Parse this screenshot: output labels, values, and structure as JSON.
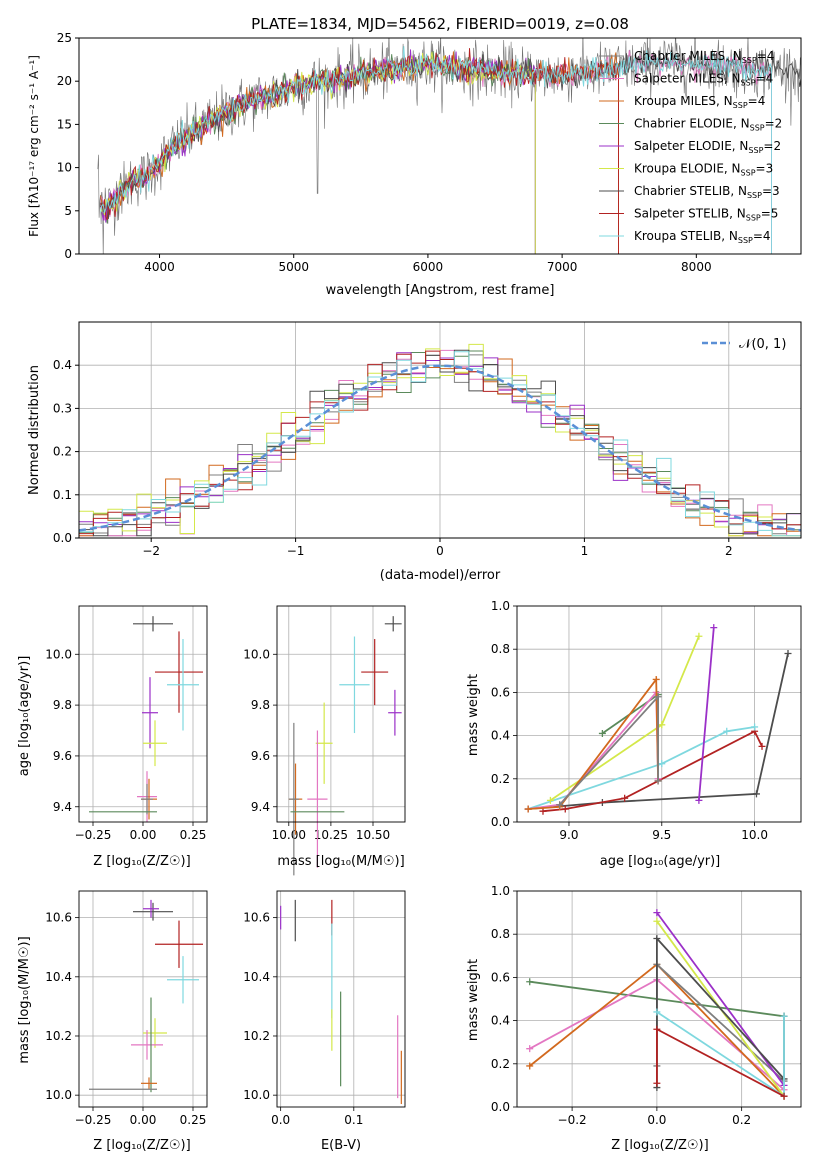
{
  "colors": {
    "Chabrier MILES": "#7f7f7f",
    "Salpeter MILES": "#e377c2",
    "Kroupa MILES": "#d2691e",
    "Chabrier ELODIE": "#5b8a5b",
    "Salpeter ELODIE": "#9b30c8",
    "Kroupa ELODIE": "#d4e84a",
    "Chabrier STELIB": "#4d4d4d",
    "Salpeter STELIB": "#b22222",
    "Kroupa STELIB": "#7fd8df",
    "normal": "#5a8fd6",
    "grid": "#b0b0b0"
  },
  "labels": {
    "title": "PLATE=1834, MJD=54562, FIBERID=0019, z=0.08",
    "spec_xlabel": "wavelength [Angstrom, rest frame]",
    "spec_ylabel": "Flux [fλ10⁻¹⁷ erg cm⁻² s⁻¹ A⁻¹]",
    "hist_xlabel": "(data-model)/error",
    "hist_ylabel": "Normed distribution",
    "hist_legend": "𝒩(0, 1)",
    "age_ylabel": "age  [log₁₀(age/yr)]",
    "z_xlabel": "Z [log₁₀(Z/Z☉)]",
    "mass_xlabel": "mass [log₁₀(M/M☉)]",
    "age_xlabel": "age  [log₁₀(age/yr)]",
    "mw_ylabel": "mass weight",
    "mass_ylabel": "mass [log₁₀(M/M☉)]",
    "ebv_xlabel": "E(B-V)"
  },
  "legend": [
    {
      "text": "Chabrier MILES, N",
      "sub": "SSP",
      "post": "=4",
      "series": "Chabrier MILES"
    },
    {
      "text": "Salpeter MILES, N",
      "sub": "SSP",
      "post": "=4",
      "series": "Salpeter MILES"
    },
    {
      "text": "Kroupa MILES, N",
      "sub": "SSP",
      "post": "=4",
      "series": "Kroupa MILES"
    },
    {
      "text": "Chabrier ELODIE, N",
      "sub": "SSP",
      "post": "=2",
      "series": "Chabrier ELODIE"
    },
    {
      "text": "Salpeter ELODIE, N",
      "sub": "SSP",
      "post": "=2",
      "series": "Salpeter ELODIE"
    },
    {
      "text": "Kroupa ELODIE, N",
      "sub": "SSP",
      "post": "=3",
      "series": "Kroupa ELODIE"
    },
    {
      "text": "Chabrier STELIB, N",
      "sub": "SSP",
      "post": "=3",
      "series": "Chabrier STELIB"
    },
    {
      "text": "Salpeter STELIB, N",
      "sub": "SSP",
      "post": "=5",
      "series": "Salpeter STELIB"
    },
    {
      "text": "Kroupa STELIB, N",
      "sub": "SSP",
      "post": "=4",
      "series": "Kroupa STELIB"
    }
  ],
  "chart_data": [
    {
      "id": "spectrum",
      "type": "line",
      "title": "PLATE=1834, MJD=54562, FIBERID=0019, z=0.08",
      "xlabel": "wavelength [Angstrom, rest frame]",
      "ylabel": "Flux [fλ10⁻¹⁷ erg cm⁻² s⁻¹ A⁻¹]",
      "xlim": [
        3400,
        8780
      ],
      "ylim": [
        0,
        25
      ],
      "xticks": [
        4000,
        5000,
        6000,
        7000,
        8000
      ],
      "yticks": [
        0,
        5,
        10,
        15,
        20,
        25
      ],
      "grid": false,
      "legend_position": "right",
      "continuum": {
        "x": [
          3540,
          3600,
          3700,
          3800,
          3900,
          4000,
          4100,
          4200,
          4300,
          4400,
          4500,
          4600,
          4700,
          4800,
          4900,
          5000,
          5200,
          5400,
          5600,
          5800,
          6000,
          6200,
          6400,
          6600,
          6800,
          7000,
          7200,
          7400,
          7600,
          7800,
          8000,
          8200,
          8400,
          8600
        ],
        "y": [
          6.0,
          5.0,
          7.0,
          8.5,
          9.0,
          10.5,
          12.5,
          13.5,
          14.5,
          15.5,
          16.5,
          17.2,
          17.8,
          18.3,
          18.8,
          19.3,
          20.0,
          20.5,
          21.0,
          21.5,
          22.0,
          21.5,
          21.2,
          21.0,
          20.8,
          20.8,
          21.0,
          21.5,
          22.0,
          22.3,
          22.0,
          21.7,
          21.5,
          21.3
        ]
      },
      "series": [
        {
          "name": "Chabrier MILES",
          "end": 8560
        },
        {
          "name": "Salpeter MILES",
          "end": 8560
        },
        {
          "name": "Kroupa MILES",
          "end": 7420
        },
        {
          "name": "Chabrier ELODIE",
          "end": 6800
        },
        {
          "name": "Salpeter ELODIE",
          "end": 6800
        },
        {
          "name": "Kroupa ELODIE",
          "end": 6800
        },
        {
          "name": "Chabrier STELIB",
          "end": 8780
        },
        {
          "name": "Salpeter STELIB",
          "end": 7420
        },
        {
          "name": "Kroupa STELIB",
          "end": 8560
        }
      ]
    },
    {
      "id": "residuals",
      "type": "line",
      "xlabel": "(data-model)/error",
      "ylabel": "Normed distribution",
      "xlim": [
        -2.5,
        2.5
      ],
      "ylim": [
        0,
        0.5
      ],
      "xticks": [
        -2,
        -1,
        0,
        1,
        2
      ],
      "yticks": [
        0.0,
        0.1,
        0.2,
        0.3,
        0.4
      ],
      "grid": true,
      "legend_position": "top-right",
      "reference": {
        "name": "𝒩(0, 1)",
        "mean": 0,
        "sigma": 1
      },
      "bin_width": 0.1
    },
    {
      "id": "age_vs_Z",
      "type": "scatter",
      "xlabel": "Z [log₁₀(Z/Z☉)]",
      "ylabel": "age  [log₁₀(age/yr)]",
      "xlim": [
        -0.32,
        0.32
      ],
      "ylim": [
        9.34,
        10.19
      ],
      "xticks": [
        -0.25,
        0.0,
        0.25
      ],
      "yticks": [
        9.4,
        9.6,
        9.8,
        10.0
      ],
      "grid": true,
      "points": [
        {
          "series": "Chabrier STELIB",
          "x": 0.05,
          "y": 10.12,
          "xerr": 0.1,
          "yerr": 0.03
        },
        {
          "series": "Salpeter STELIB",
          "x": 0.18,
          "y": 9.93,
          "xerr": 0.12,
          "yerr": 0.16
        },
        {
          "series": "Kroupa STELIB",
          "x": 0.2,
          "y": 9.88,
          "xerr": 0.08,
          "yerr": 0.18
        },
        {
          "series": "Salpeter ELODIE",
          "x": 0.035,
          "y": 9.77,
          "xerr": 0.04,
          "yerr": 0.14
        },
        {
          "series": "Kroupa ELODIE",
          "x": 0.06,
          "y": 9.65,
          "xerr": 0.06,
          "yerr": 0.09
        },
        {
          "series": "Salpeter MILES",
          "x": 0.02,
          "y": 9.44,
          "xerr": 0.05,
          "yerr": 0.1
        },
        {
          "series": "Kroupa MILES",
          "x": 0.03,
          "y": 9.43,
          "xerr": 0.04,
          "yerr": 0.08
        },
        {
          "series": "Chabrier MILES",
          "x": 0.02,
          "y": 9.43,
          "xerr": 0.03,
          "yerr": 0.06
        },
        {
          "series": "Chabrier ELODIE",
          "x": -0.1,
          "y": 9.38,
          "xerr": 0.17,
          "yerr": 0.0
        }
      ]
    },
    {
      "id": "age_vs_mass",
      "type": "scatter",
      "xlabel": "mass [log₁₀(M/M☉)]",
      "xlim": [
        9.93,
        10.69
      ],
      "ylim": [
        9.34,
        10.19
      ],
      "xticks": [
        10.0,
        10.25,
        10.5
      ],
      "yticks": [
        9.4,
        9.6,
        9.8,
        10.0
      ],
      "grid": true,
      "points": [
        {
          "series": "Chabrier STELIB",
          "x": 10.62,
          "y": 10.12,
          "xerr": 0.05,
          "yerr": 0.03
        },
        {
          "series": "Salpeter STELIB",
          "x": 10.51,
          "y": 9.93,
          "xerr": 0.08,
          "yerr": 0.13
        },
        {
          "series": "Kroupa STELIB",
          "x": 10.39,
          "y": 9.88,
          "xerr": 0.09,
          "yerr": 0.19
        },
        {
          "series": "Salpeter ELODIE",
          "x": 10.63,
          "y": 9.77,
          "xerr": 0.04,
          "yerr": 0.09
        },
        {
          "series": "Kroupa ELODIE",
          "x": 10.21,
          "y": 9.65,
          "xerr": 0.05,
          "yerr": 0.16
        },
        {
          "series": "Salpeter MILES",
          "x": 10.17,
          "y": 9.43,
          "xerr": 0.06,
          "yerr": 0.27
        },
        {
          "series": "Kroupa MILES",
          "x": 10.04,
          "y": 9.43,
          "xerr": 0.04,
          "yerr": 0.14
        },
        {
          "series": "Chabrier MILES",
          "x": 10.03,
          "y": 9.43,
          "xerr": 0.03,
          "yerr": 0.3
        },
        {
          "series": "Chabrier ELODIE",
          "x": 10.17,
          "y": 9.38,
          "xerr": 0.16,
          "yerr": 0.0
        }
      ]
    },
    {
      "id": "massweight_vs_age",
      "type": "line",
      "xlabel": "age  [log₁₀(age/yr)]",
      "ylabel": "mass weight",
      "xlim": [
        8.72,
        10.25
      ],
      "ylim": [
        0,
        1
      ],
      "xticks": [
        9.0,
        9.5,
        10.0
      ],
      "yticks": [
        0.0,
        0.2,
        0.4,
        0.6,
        0.8,
        1.0
      ],
      "grid": true,
      "series": [
        {
          "name": "Chabrier STELIB",
          "x": [
            8.78,
            9.18,
            10.01,
            10.18
          ],
          "y": [
            0.06,
            0.09,
            0.13,
            0.78
          ]
        },
        {
          "name": "Salpeter STELIB",
          "x": [
            8.86,
            8.98,
            9.3,
            10.0,
            10.04
          ],
          "y": [
            0.05,
            0.06,
            0.11,
            0.42,
            0.35
          ]
        },
        {
          "name": "Kroupa STELIB",
          "x": [
            8.78,
            9.5,
            9.85,
            10.0
          ],
          "y": [
            0.06,
            0.27,
            0.42,
            0.44
          ]
        },
        {
          "name": "Salpeter ELODIE",
          "x": [
            9.7,
            9.78
          ],
          "y": [
            0.1,
            0.9
          ]
        },
        {
          "name": "Kroupa ELODIE",
          "x": [
            8.9,
            9.5,
            9.7
          ],
          "y": [
            0.1,
            0.45,
            0.86
          ]
        },
        {
          "name": "Chabrier ELODIE",
          "x": [
            9.18,
            9.48
          ],
          "y": [
            0.41,
            0.59
          ]
        },
        {
          "name": "Salpeter MILES",
          "x": [
            8.78,
            8.95,
            9.47,
            9.48
          ],
          "y": [
            0.06,
            0.08,
            0.6,
            0.2
          ]
        },
        {
          "name": "Kroupa MILES",
          "x": [
            8.78,
            8.95,
            9.47,
            9.48
          ],
          "y": [
            0.06,
            0.07,
            0.66,
            0.19
          ]
        },
        {
          "name": "Chabrier MILES",
          "x": [
            8.95,
            9.48,
            9.48
          ],
          "y": [
            0.08,
            0.58,
            0.19
          ]
        }
      ]
    },
    {
      "id": "mass_vs_Z",
      "type": "scatter",
      "xlabel": "Z [log₁₀(Z/Z☉)]",
      "ylabel": "mass [log₁₀(M/M☉)]",
      "xlim": [
        -0.32,
        0.32
      ],
      "ylim": [
        9.96,
        10.69
      ],
      "xticks": [
        -0.25,
        0.0,
        0.25
      ],
      "yticks": [
        10.0,
        10.2,
        10.4,
        10.6
      ],
      "grid": true,
      "points": [
        {
          "series": "Chabrier STELIB",
          "x": 0.05,
          "y": 10.62,
          "xerr": 0.1,
          "yerr": 0.03
        },
        {
          "series": "Salpeter ELODIE",
          "x": 0.04,
          "y": 10.63,
          "xerr": 0.04,
          "yerr": 0.03
        },
        {
          "series": "Salpeter STELIB",
          "x": 0.18,
          "y": 10.51,
          "xerr": 0.12,
          "yerr": 0.08
        },
        {
          "series": "Kroupa STELIB",
          "x": 0.2,
          "y": 10.39,
          "xerr": 0.08,
          "yerr": 0.08
        },
        {
          "series": "Kroupa ELODIE",
          "x": 0.06,
          "y": 10.21,
          "xerr": 0.06,
          "yerr": 0.05
        },
        {
          "series": "Salpeter MILES",
          "x": 0.02,
          "y": 10.17,
          "xerr": 0.08,
          "yerr": 0.05
        },
        {
          "series": "Chabrier ELODIE",
          "x": 0.04,
          "y": 10.17,
          "xerr": 0.0,
          "yerr": 0.16
        },
        {
          "series": "Kroupa MILES",
          "x": 0.03,
          "y": 10.04,
          "xerr": 0.04,
          "yerr": 0.02
        },
        {
          "series": "Chabrier MILES",
          "x": -0.1,
          "y": 10.02,
          "xerr": 0.17,
          "yerr": 0.0
        }
      ]
    },
    {
      "id": "mass_vs_EBV",
      "type": "scatter",
      "xlabel": "E(B-V)",
      "xlim": [
        -0.005,
        0.17
      ],
      "ylim": [
        9.96,
        10.69
      ],
      "xticks": [
        0.0,
        0.1
      ],
      "yticks": [
        10.0,
        10.2,
        10.4,
        10.6
      ],
      "grid": true,
      "points": [
        {
          "series": "Salpeter ELODIE",
          "x": 0.0,
          "y": 10.6,
          "xerr": 0,
          "yerr": 0.04
        },
        {
          "series": "Chabrier STELIB",
          "x": 0.02,
          "y": 10.59,
          "xerr": 0,
          "yerr": 0.07
        },
        {
          "series": "Salpeter STELIB",
          "x": 0.07,
          "y": 10.6,
          "xerr": 0,
          "yerr": 0.06
        },
        {
          "series": "Kroupa STELIB",
          "x": 0.07,
          "y": 10.42,
          "xerr": 0,
          "yerr": 0.16
        },
        {
          "series": "Kroupa ELODIE",
          "x": 0.07,
          "y": 10.22,
          "xerr": 0,
          "yerr": 0.07
        },
        {
          "series": "Chabrier ELODIE",
          "x": 0.082,
          "y": 10.19,
          "xerr": 0,
          "yerr": 0.16
        },
        {
          "series": "Salpeter MILES",
          "x": 0.16,
          "y": 10.13,
          "xerr": 0,
          "yerr": 0.14
        },
        {
          "series": "Kroupa MILES",
          "x": 0.165,
          "y": 10.06,
          "xerr": 0,
          "yerr": 0.09
        }
      ]
    },
    {
      "id": "massweight_vs_Z",
      "type": "line",
      "xlabel": "Z [log₁₀(Z/Z☉)]",
      "ylabel": "mass weight",
      "xlim": [
        -0.33,
        0.34
      ],
      "ylim": [
        0,
        1
      ],
      "xticks": [
        -0.2,
        0.0,
        0.2
      ],
      "yticks": [
        0.0,
        0.2,
        0.4,
        0.6,
        0.8,
        1.0
      ],
      "grid": true,
      "series": [
        {
          "name": "Chabrier ELODIE",
          "x": [
            -0.3,
            0.3
          ],
          "y": [
            0.58,
            0.42
          ]
        },
        {
          "name": "Salpeter MILES",
          "x": [
            -0.3,
            0.0,
            0.3
          ],
          "y": [
            0.27,
            0.59,
            0.08
          ]
        },
        {
          "name": "Kroupa MILES",
          "x": [
            -0.3,
            0.0,
            0.3
          ],
          "y": [
            0.19,
            0.66,
            0.05
          ]
        },
        {
          "name": "Chabrier MILES",
          "x": [
            0.0,
            0.0,
            0.3
          ],
          "y": [
            0.19,
            0.66,
            0.12
          ]
        },
        {
          "name": "Salpeter ELODIE",
          "x": [
            0.0,
            0.3
          ],
          "y": [
            0.9,
            0.1
          ]
        },
        {
          "name": "Kroupa ELODIE",
          "x": [
            0.0,
            0.3
          ],
          "y": [
            0.86,
            0.05
          ]
        },
        {
          "name": "Chabrier STELIB",
          "x": [
            0.0,
            0.0,
            0.3,
            0.3
          ],
          "y": [
            0.09,
            0.78,
            0.13,
            0.42
          ]
        },
        {
          "name": "Kroupa STELIB",
          "x": [
            0.0,
            0.3,
            0.3
          ],
          "y": [
            0.44,
            0.05,
            0.42
          ]
        },
        {
          "name": "Salpeter STELIB",
          "x": [
            0.0,
            0.0,
            0.3
          ],
          "y": [
            0.11,
            0.36,
            0.05
          ]
        }
      ]
    }
  ]
}
